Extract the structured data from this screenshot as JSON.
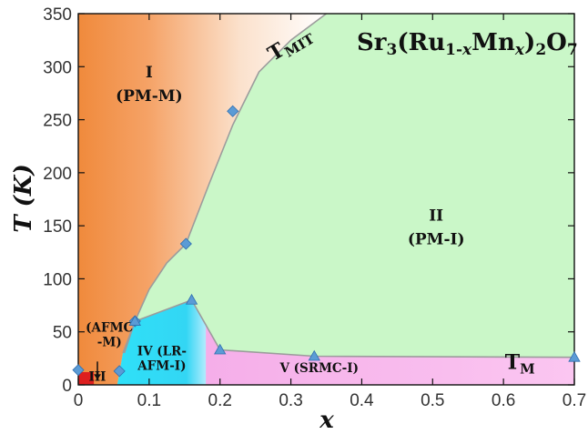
{
  "chart_data": {
    "type": "scatter",
    "title": "",
    "xlabel": "x",
    "ylabel": "T (K)",
    "xlim": [
      0,
      0.7
    ],
    "ylim": [
      0,
      350
    ],
    "x_ticks": [
      "0",
      "0.1",
      "0.2",
      "0.3",
      "0.4",
      "0.5",
      "0.6",
      "0.7"
    ],
    "y_ticks": [
      "0",
      "50",
      "100",
      "150",
      "200",
      "250",
      "300",
      "350"
    ],
    "formula": {
      "parts": [
        {
          "t": "Sr",
          "s": "n"
        },
        {
          "t": "3",
          "s": "sub"
        },
        {
          "t": "(Ru",
          "s": "n"
        },
        {
          "t": "1-",
          "s": "sub"
        },
        {
          "t": "x",
          "s": "subi"
        },
        {
          "t": "Mn",
          "s": "n"
        },
        {
          "t": "x",
          "s": "subi"
        },
        {
          "t": ")",
          "s": "n"
        },
        {
          "t": "2",
          "s": "sub"
        },
        {
          "t": "O",
          "s": "n"
        },
        {
          "t": "7",
          "s": "sub"
        }
      ]
    },
    "curve_labels": {
      "t_mit_main": "T",
      "t_mit_sub": "MIT",
      "t_m_main": "T",
      "t_m_sub": "M"
    },
    "regions": [
      {
        "label": "I",
        "line2": "(PM-M)",
        "fill": "#f08a3c",
        "at": [
          0.1,
          290
        ]
      },
      {
        "label": "II",
        "line2": "(PM-I)",
        "fill": "#caf7c8",
        "at": [
          0.505,
          155
        ]
      },
      {
        "label": "(AFMC",
        "line2": "-M)",
        "fill": "#ff9a40",
        "at": [
          0.044,
          50
        ]
      },
      {
        "label": "III",
        "line2": "",
        "fill": "#dd1f1f",
        "at": [
          0.027,
          4
        ]
      },
      {
        "label": "IV (LR-",
        "line2": "AFM-I)",
        "fill": "#33d8f4",
        "at": [
          0.118,
          28
        ]
      },
      {
        "label": "V (SRMC-I)",
        "line2": "",
        "fill": "#f7b6ee",
        "at": [
          0.34,
          12
        ]
      }
    ],
    "series": [
      {
        "marker": "diamond",
        "color": "#5b9bd5",
        "points": [
          [
            0,
            14
          ],
          [
            0.058,
            13
          ],
          [
            0.08,
            60
          ],
          [
            0.152,
            133
          ],
          [
            0.218,
            258
          ]
        ]
      },
      {
        "marker": "triangle",
        "color": "#5b9bd5",
        "points": [
          [
            0.08,
            60
          ],
          [
            0.16,
            80
          ],
          [
            0.2,
            33
          ],
          [
            0.333,
            27
          ],
          [
            0.7,
            26
          ]
        ]
      }
    ],
    "t_mit_curve": {
      "x": [
        0.063,
        0.08,
        0.1,
        0.125,
        0.152,
        0.185,
        0.218,
        0.255,
        0.3,
        0.35
      ],
      "y": [
        30,
        60,
        90,
        115,
        133,
        190,
        245,
        295,
        325,
        350
      ]
    },
    "t_m_curve": {
      "x": [
        0.065,
        0.08,
        0.16,
        0.2,
        0.333,
        0.7
      ],
      "y": [
        30,
        60,
        80,
        33,
        27,
        26
      ]
    }
  }
}
